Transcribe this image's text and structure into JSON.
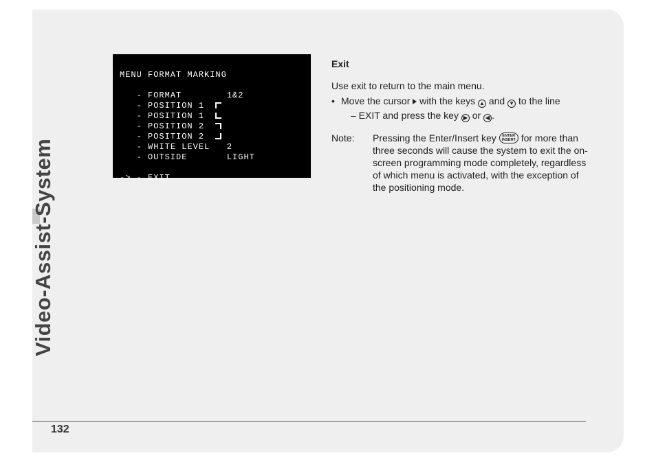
{
  "section_title": "Video-Assist-System",
  "page_number": "132",
  "osd": {
    "title": "MENU FORMAT MARKING",
    "rows": [
      {
        "label": "FORMAT",
        "value": "1&2",
        "corner": ""
      },
      {
        "label": "POSITION 1",
        "value": "",
        "corner": "tl"
      },
      {
        "label": "POSITION 1",
        "value": "",
        "corner": "bl"
      },
      {
        "label": "POSITION 2",
        "value": "",
        "corner": "tr"
      },
      {
        "label": "POSITION 2",
        "value": "",
        "corner": "br"
      },
      {
        "label": "WHITE LEVEL",
        "value": "2",
        "corner": ""
      },
      {
        "label": "OUTSIDE",
        "value": "LIGHT",
        "corner": ""
      }
    ],
    "exit_row": "-> - EXIT"
  },
  "body": {
    "heading": "Exit",
    "p1": "Use exit to return to the main menu.",
    "bullet_a": "Move the cursor ",
    "bullet_b": " with the keys ",
    "bullet_c": " and ",
    "bullet_d": " to the line",
    "bullet_line2a": "– EXIT and press the key ",
    "bullet_line2b": " or ",
    "bullet_line2c": ".",
    "note_label": "Note:",
    "note_a": "Pressing the Enter/Insert key ",
    "note_b": " for more than three seconds will cause the system to exit the on-screen programming mode completely, regardless of which menu is activated, with the exception of the positioning mode.",
    "key_up": "▲",
    "key_down": "▼",
    "key_right": "▶",
    "key_left": "◀",
    "key_enter": "ENTER\nINSERT"
  },
  "colors": {
    "page_bg": "#efefef",
    "osd_bg": "#000000",
    "osd_fg": "#ffffff",
    "text": "#222222",
    "vtitle": "#444444",
    "accent": "#c9c9c9"
  }
}
